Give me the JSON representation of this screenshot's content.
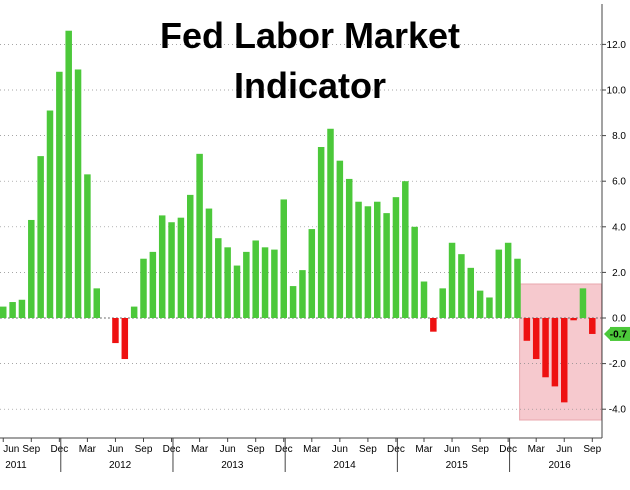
{
  "chart_data": {
    "type": "bar",
    "title_lines": [
      "Fed Labor Market",
      "Indicator"
    ],
    "ylim": [
      -4.8,
      13.4
    ],
    "yticks": [
      "12.0",
      "10.0",
      "8.0",
      "6.0",
      "4.0",
      "2.0",
      "0.0",
      "-2.0",
      "-4.0"
    ],
    "last_value_label": "-0.7",
    "month_ticks": [
      "Jun",
      "Sep",
      "Dec",
      "Mar",
      "Jun",
      "Sep",
      "Dec",
      "Mar",
      "Jun",
      "Sep",
      "Dec",
      "Mar",
      "Jun",
      "Sep",
      "Dec",
      "Mar",
      "Jun",
      "Sep",
      "Dec",
      "Mar",
      "Jun",
      "Sep"
    ],
    "year_labels": [
      "2011",
      "2012",
      "2013",
      "2014",
      "2015",
      "2016"
    ],
    "values": [
      0.5,
      0.7,
      0.8,
      4.3,
      7.1,
      9.1,
      10.8,
      12.6,
      10.9,
      6.3,
      1.3,
      0.0,
      -1.1,
      -1.8,
      0.5,
      2.6,
      2.9,
      4.5,
      4.2,
      4.4,
      5.4,
      7.2,
      4.8,
      3.5,
      3.1,
      2.3,
      2.9,
      3.4,
      3.1,
      3.0,
      5.2,
      1.4,
      2.1,
      3.9,
      7.5,
      8.3,
      6.9,
      6.1,
      5.1,
      4.9,
      5.1,
      4.6,
      5.3,
      6.0,
      4.0,
      1.6,
      -0.6,
      1.3,
      3.3,
      2.8,
      2.2,
      1.2,
      0.9,
      3.0,
      3.3,
      2.6,
      -1.0,
      -1.8,
      -2.6,
      -3.0,
      -3.7,
      -0.1,
      1.3,
      -0.7
    ],
    "colors": {
      "positive": "#4cc83a",
      "negative": "#ee1111",
      "highlight": "#f6c9ce",
      "highlight_border": "#e8a7ae",
      "grid": "#888888"
    }
  }
}
